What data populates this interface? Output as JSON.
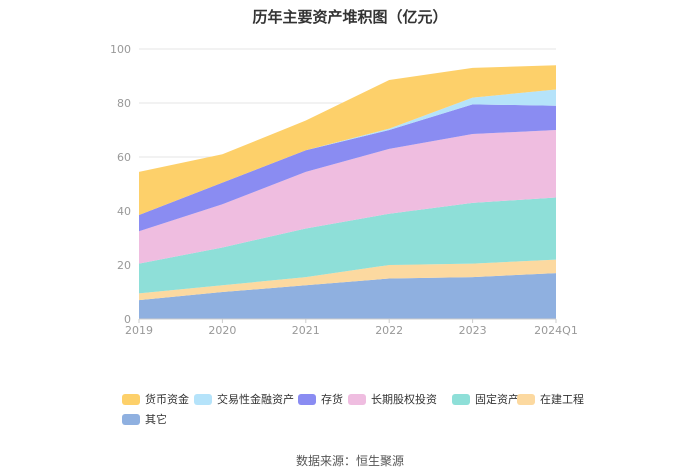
{
  "chart_data": {
    "type": "area",
    "stacked": true,
    "title": "历年主要资产堆积图（亿元）",
    "categories": [
      "2019",
      "2020",
      "2021",
      "2022",
      "2023",
      "2024Q1"
    ],
    "ylim": [
      0,
      100
    ],
    "yticks": [
      0,
      20,
      40,
      60,
      80,
      100
    ],
    "grid": true,
    "legend_position": "bottom-left",
    "series": [
      {
        "name": "其它",
        "color": "#8fb0e0",
        "values": [
          7,
          10,
          12.5,
          15,
          15.5,
          17
        ]
      },
      {
        "name": "在建工程",
        "color": "#fcd9a0",
        "values": [
          2.5,
          2.5,
          3,
          5,
          5,
          5
        ]
      },
      {
        "name": "固定资产",
        "color": "#8edfd8",
        "values": [
          11,
          14,
          18,
          19,
          22.5,
          23
        ]
      },
      {
        "name": "长期股权投资",
        "color": "#efbde0",
        "values": [
          12,
          16,
          21,
          24,
          25.5,
          25
        ]
      },
      {
        "name": "存货",
        "color": "#8a8cf2",
        "values": [
          6,
          8,
          8,
          7,
          11,
          9
        ]
      },
      {
        "name": "交易性金融资产",
        "color": "#b5e3fa",
        "values": [
          0,
          0,
          0,
          0.5,
          2.5,
          6
        ]
      },
      {
        "name": "货币资金",
        "color": "#fdd06a",
        "values": [
          16,
          10.5,
          11,
          18,
          11,
          9
        ]
      }
    ],
    "legend_order": [
      "货币资金",
      "交易性金融资产",
      "存货",
      "长期股权投资",
      "固定资产",
      "在建工程",
      "其它"
    ]
  },
  "source": "数据来源：恒生聚源"
}
